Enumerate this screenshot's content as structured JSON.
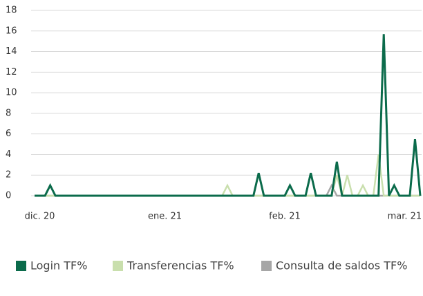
{
  "chart_data": {
    "type": "line",
    "categories": [
      null,
      "dic. 20",
      null,
      null,
      null,
      null,
      null,
      null,
      null,
      null,
      null,
      null,
      null,
      null,
      null,
      null,
      null,
      null,
      null,
      null,
      null,
      null,
      null,
      null,
      null,
      "ene. 21",
      null,
      null,
      null,
      null,
      null,
      null,
      null,
      null,
      null,
      null,
      null,
      null,
      null,
      null,
      null,
      null,
      null,
      null,
      null,
      null,
      null,
      null,
      "feb. 21",
      null,
      null,
      null,
      null,
      null,
      null,
      null,
      null,
      null,
      null,
      null,
      null,
      null,
      null,
      null,
      null,
      null,
      null,
      null,
      null,
      null,
      null,
      "mar. 21",
      null,
      null,
      null
    ],
    "series": [
      {
        "name": "Login TF%",
        "color": "#0b6b4b",
        "values": [
          0,
          0,
          0,
          1,
          0,
          0,
          0,
          0,
          0,
          0,
          0,
          0,
          0,
          0,
          0,
          0,
          0,
          0,
          0,
          0,
          0,
          0,
          0,
          0,
          0,
          0,
          0,
          0,
          0,
          0,
          0,
          0,
          0,
          0,
          0,
          0,
          0,
          0,
          0,
          0,
          0,
          0,
          0,
          2.2,
          0,
          0,
          0,
          0,
          0,
          1,
          0,
          0,
          0,
          2.2,
          0,
          0,
          0,
          0,
          3.3,
          0,
          0,
          0,
          0,
          0,
          0,
          0,
          0,
          15.7,
          0,
          1,
          0,
          0,
          0,
          5.5,
          0
        ]
      },
      {
        "name": "Transferencias TF%",
        "color": "#c9dfad",
        "values": [
          0,
          0,
          0,
          0,
          0,
          0,
          0,
          0,
          0,
          0,
          0,
          0,
          0,
          0,
          0,
          0,
          0,
          0,
          0,
          0,
          0,
          0,
          0,
          0,
          0,
          0,
          0,
          0,
          0,
          0,
          0,
          0,
          0,
          0,
          0,
          0,
          0,
          1,
          0,
          0,
          0,
          0,
          0,
          0,
          0,
          0,
          0,
          0,
          0,
          0,
          0,
          0,
          0,
          0,
          0,
          0,
          0,
          0,
          2,
          0,
          2,
          0,
          0,
          1,
          0,
          0,
          4,
          0,
          0,
          0,
          0,
          0,
          0,
          0,
          0
        ]
      },
      {
        "name": "Consulta de saldos TF%",
        "color": "#a6a6a6",
        "values": [
          0,
          0,
          0,
          0,
          0,
          0,
          0,
          0,
          0,
          0,
          0,
          0,
          0,
          0,
          0,
          0,
          0,
          0,
          0,
          0,
          0,
          0,
          0,
          0,
          0,
          0,
          0,
          0,
          0,
          0,
          0,
          0,
          0,
          0,
          0,
          0,
          0,
          0,
          0,
          0,
          0,
          0,
          0,
          0,
          0,
          0,
          0,
          0,
          0,
          0,
          0,
          0,
          0,
          0,
          0,
          0,
          0,
          1,
          0,
          0,
          0,
          0,
          0,
          0,
          0,
          0,
          0,
          0,
          0,
          0,
          0,
          0,
          0,
          0,
          0
        ]
      }
    ],
    "ylim": [
      0,
      18
    ],
    "yticks": [
      0,
      2,
      4,
      6,
      8,
      10,
      12,
      14,
      16,
      18
    ],
    "grid": true,
    "legend": "bottom"
  }
}
